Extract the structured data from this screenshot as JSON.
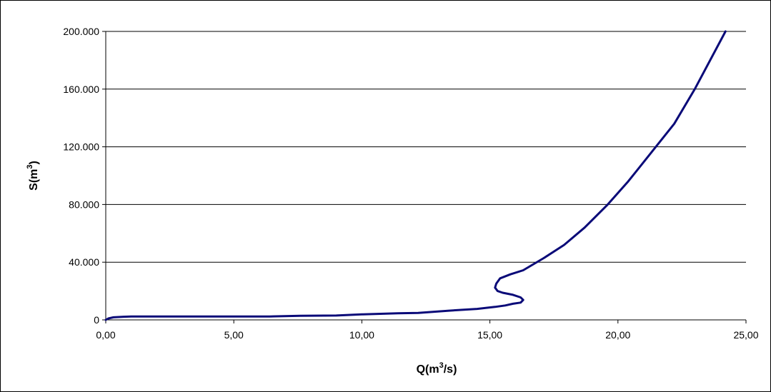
{
  "chart_data": {
    "type": "line",
    "xlabel": {
      "base": "Q(m",
      "sup": "3",
      "rest": "/s)"
    },
    "ylabel": {
      "base": "S(m",
      "sup": "3",
      "rest": ")"
    },
    "xlim": [
      0,
      25
    ],
    "ylim": [
      0,
      200000
    ],
    "x_ticks": [
      0,
      5,
      10,
      15,
      20,
      25
    ],
    "x_tick_labels": [
      "0,00",
      "5,00",
      "10,00",
      "15,00",
      "20,00",
      "25,00"
    ],
    "y_ticks": [
      0,
      40000,
      80000,
      120000,
      160000,
      200000
    ],
    "y_tick_labels": [
      "0",
      "40.000",
      "80.000",
      "120.000",
      "160.000",
      "200.000"
    ],
    "grid": {
      "horizontal": true,
      "vertical": false
    },
    "line_color": "#0a0a78",
    "series": [
      {
        "x": [
          0.0,
          0.1,
          0.3,
          0.7,
          1.0,
          3.0,
          6.4,
          7.6,
          9.0,
          10.0,
          11.4,
          12.2,
          13.4,
          14.5,
          15.2,
          15.6,
          15.9,
          16.2,
          16.3,
          16.2,
          15.9,
          15.5,
          15.3,
          15.2,
          15.25,
          15.4,
          15.8,
          16.3,
          17.1,
          17.9,
          18.7,
          19.6,
          20.4,
          21.3,
          22.2,
          23.0,
          24.2
        ],
        "y": [
          0,
          1000,
          1800,
          2200,
          2400,
          2400,
          2400,
          2800,
          3000,
          3800,
          4600,
          4800,
          6400,
          7600,
          9000,
          10000,
          11200,
          12000,
          13800,
          15600,
          17400,
          18800,
          20000,
          22400,
          25200,
          28800,
          31600,
          34400,
          42800,
          52000,
          64000,
          80000,
          96000,
          116000,
          136000,
          160000,
          200000
        ]
      }
    ]
  }
}
